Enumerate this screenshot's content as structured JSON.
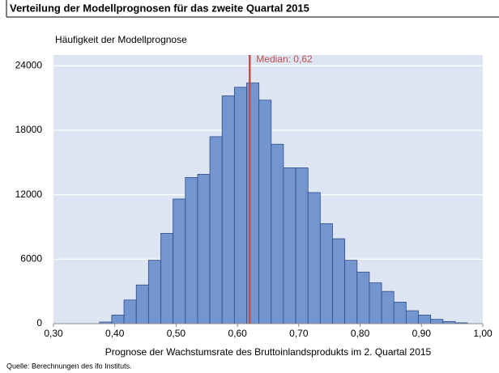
{
  "chart_data": {
    "type": "histogram",
    "title": "Verteilung der Modellprognosen für das zweite Quartal 2015",
    "y_label": "Häufigkeit der Modellprognose",
    "x_label": "Prognose der Wachstumsrate des Bruttoinlandsprodukts im 2. Quartal 2015",
    "source": "Quelle: Berechnungen des ifo Instituts.",
    "bins": [
      0.375,
      0.395,
      0.415,
      0.435,
      0.455,
      0.475,
      0.495,
      0.515,
      0.535,
      0.555,
      0.575,
      0.595,
      0.615,
      0.635,
      0.655,
      0.675,
      0.695,
      0.715,
      0.735,
      0.755,
      0.775,
      0.795,
      0.815,
      0.835,
      0.855,
      0.875,
      0.895,
      0.915,
      0.935,
      0.955,
      0.975
    ],
    "values": [
      150,
      800,
      2200,
      3600,
      5900,
      8400,
      11600,
      13600,
      13900,
      17400,
      21200,
      22000,
      22400,
      20800,
      16700,
      14500,
      14500,
      12200,
      9300,
      7900,
      5900,
      4800,
      3800,
      3000,
      2000,
      1200,
      800,
      400,
      200,
      80
    ],
    "color": "#7395d0",
    "edge_color": "#2d4d8a",
    "background": "#dde5f3",
    "median": {
      "value": 0.62,
      "label": "Median: 0,62",
      "color": "#c0504d"
    },
    "xlim": [
      0.3,
      1.0
    ],
    "xticks": [
      {
        "value": 0.3,
        "label": "0,30"
      },
      {
        "value": 0.4,
        "label": "0,40"
      },
      {
        "value": 0.5,
        "label": "0,50"
      },
      {
        "value": 0.6,
        "label": "0,60"
      },
      {
        "value": 0.7,
        "label": "0,70"
      },
      {
        "value": 0.8,
        "label": "0,80"
      },
      {
        "value": 0.9,
        "label": "0,90"
      },
      {
        "value": 1.0,
        "label": "1,00"
      }
    ],
    "ylim": [
      0,
      25000
    ],
    "yticks": [
      0,
      6000,
      12000,
      18000,
      24000
    ],
    "grid": true
  }
}
